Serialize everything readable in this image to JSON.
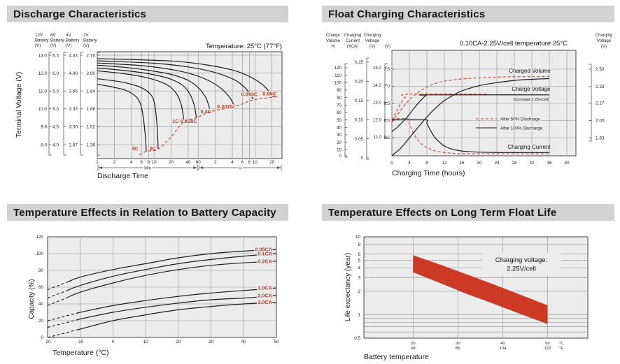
{
  "colors": {
    "title_bar_bg": "#d2d2d2",
    "title_text": "#161616",
    "plot_bg": "#ececec",
    "grid": "#8f8f8f",
    "border": "#444444",
    "curve": "#1c1c1c",
    "accent_red": "#c43a27",
    "band_red": "#cc3a26",
    "tick_text": "#222222"
  },
  "chart_data": [
    {
      "id": "discharge",
      "type": "line",
      "title": "Discharge Characteristics",
      "temperature_note": "Temperature: 25°C (77°F)",
      "xlabel": "Discharge Time",
      "ylabel": "Terminal Voltage (V)",
      "x_sections": [
        {
          "label": "Min"
        },
        {
          "label": "H"
        }
      ],
      "x_ticks_min": [
        "1",
        "2",
        "4",
        "6",
        "8",
        "10",
        "20",
        "40",
        "60"
      ],
      "x_ticks_h": [
        "2",
        "4",
        "6",
        "8",
        "10",
        "20"
      ],
      "y_axes": [
        {
          "title": "12V",
          "subtitle": "Battery",
          "unit": "(V)",
          "ticks": [
            "13.0",
            "12.0",
            "11.0",
            "10.0",
            "9.0",
            "8.0"
          ]
        },
        {
          "title": "6V",
          "subtitle": "Battery",
          "unit": "(V)",
          "ticks": [
            "6.5",
            "6.0",
            "5.5",
            "5.0",
            "4.5",
            "4.0"
          ]
        },
        {
          "title": "4V",
          "subtitle": "Battery",
          "unit": "(V)",
          "ticks": [
            "4.33",
            "4.00",
            "3.66",
            "3.33",
            "3.00",
            "2.67"
          ]
        },
        {
          "title": "2V",
          "subtitle": "Battery",
          "unit": "(V)",
          "ticks": [
            "2.16",
            "2.00",
            "1.84",
            "1.68",
            "1.52",
            "1.36"
          ]
        }
      ],
      "curves": [
        {
          "label": "3C",
          "label_at": [
            4.6,
            1.31
          ],
          "points": [
            [
              1,
              1.9
            ],
            [
              1.5,
              1.885
            ],
            [
              2,
              1.872
            ],
            [
              3,
              1.85
            ],
            [
              4,
              1.82
            ],
            [
              5,
              1.78
            ],
            [
              5.8,
              1.72
            ],
            [
              6.4,
              1.62
            ],
            [
              6.9,
              1.48
            ],
            [
              7.2,
              1.36
            ],
            [
              7.3,
              1.3
            ]
          ]
        },
        {
          "label": "2C",
          "label_at": [
            9.5,
            1.31
          ],
          "points": [
            [
              1,
              1.95
            ],
            [
              2,
              1.93
            ],
            [
              3,
              1.915
            ],
            [
              5,
              1.885
            ],
            [
              7,
              1.85
            ],
            [
              9,
              1.8
            ],
            [
              10.3,
              1.72
            ],
            [
              11.2,
              1.56
            ],
            [
              11.7,
              1.39
            ],
            [
              11.8,
              1.32
            ]
          ]
        },
        {
          "label": "1C",
          "label_at": [
            24,
            1.555
          ],
          "points": [
            [
              1,
              2.02
            ],
            [
              2,
              2.005
            ],
            [
              4,
              1.985
            ],
            [
              8,
              1.955
            ],
            [
              14,
              1.915
            ],
            [
              20,
              1.87
            ],
            [
              26,
              1.8
            ],
            [
              30,
              1.72
            ],
            [
              32.5,
              1.63
            ],
            [
              33.5,
              1.575
            ]
          ]
        },
        {
          "label": "0.628C",
          "label_at": [
            41,
            1.555
          ],
          "points": [
            [
              1,
              2.045
            ],
            [
              2,
              2.032
            ],
            [
              5,
              2.01
            ],
            [
              10,
              1.985
            ],
            [
              20,
              1.945
            ],
            [
              32,
              1.89
            ],
            [
              42,
              1.82
            ],
            [
              50,
              1.73
            ],
            [
              54,
              1.65
            ],
            [
              55.5,
              1.6
            ]
          ]
        },
        {
          "label": "0.4C",
          "label_at": [
            82,
            1.64
          ],
          "points": [
            [
              1,
              2.07
            ],
            [
              3,
              2.052
            ],
            [
              8,
              2.025
            ],
            [
              20,
              1.988
            ],
            [
              40,
              1.935
            ],
            [
              60,
              1.87
            ],
            [
              80,
              1.79
            ],
            [
              92,
              1.71
            ],
            [
              98,
              1.66
            ]
          ]
        },
        {
          "label": "0.207C",
          "label_at": [
            180,
            1.685
          ],
          "points": [
            [
              1,
              2.09
            ],
            [
              5,
              2.07
            ],
            [
              15,
              2.042
            ],
            [
              40,
              2.0
            ],
            [
              90,
              1.935
            ],
            [
              150,
              1.865
            ],
            [
              210,
              1.79
            ],
            [
              250,
              1.725
            ],
            [
              262,
              1.7
            ]
          ]
        },
        {
          "label": "0.093C",
          "label_at": [
            480,
            1.795
          ],
          "points": [
            [
              1,
              2.11
            ],
            [
              10,
              2.088
            ],
            [
              40,
              2.055
            ],
            [
              120,
              2.005
            ],
            [
              260,
              1.94
            ],
            [
              400,
              1.87
            ],
            [
              510,
              1.8
            ],
            [
              560,
              1.765
            ]
          ]
        },
        {
          "label": "0.05C",
          "label_at": [
            1080,
            1.8
          ],
          "points": [
            [
              1,
              2.13
            ],
            [
              20,
              2.108
            ],
            [
              80,
              2.075
            ],
            [
              250,
              2.025
            ],
            [
              500,
              1.965
            ],
            [
              800,
              1.9
            ],
            [
              1050,
              1.84
            ],
            [
              1200,
              1.8
            ],
            [
              1280,
              1.785
            ]
          ]
        }
      ],
      "cutoff_curve": [
        [
          5.5,
          1.27
        ],
        [
          7.3,
          1.3
        ],
        [
          11.8,
          1.32
        ],
        [
          20,
          1.43
        ],
        [
          33.5,
          1.565
        ],
        [
          55.5,
          1.6
        ],
        [
          98,
          1.655
        ],
        [
          262,
          1.7
        ],
        [
          560,
          1.76
        ],
        [
          1280,
          1.785
        ],
        [
          1600,
          1.795
        ]
      ]
    },
    {
      "id": "float_charging",
      "type": "line",
      "title": "Float Charging Characteristics",
      "condition_note": "0.10CA-2.25V/cell  temperature 25°C",
      "xlabel": "Charging Time (hours)",
      "x_ticks": [
        0,
        4,
        8,
        12,
        16,
        20,
        24,
        28,
        32,
        36,
        40
      ],
      "left_axes": [
        {
          "title_lines": [
            "Charge",
            "Volume"
          ],
          "unit": "%",
          "ticks": [
            "120",
            "110",
            "100",
            "90",
            "80",
            "70",
            "60",
            "50",
            "40",
            "30",
            "20",
            "10",
            "0"
          ]
        },
        {
          "title_lines": [
            "Charging",
            "Current"
          ],
          "unit": "(XCA)",
          "ticks": [
            "0.25",
            "0.20",
            "0.15",
            "0.10",
            "0.05",
            "0"
          ]
        },
        {
          "title_lines": [
            "Charging",
            "Voltage"
          ],
          "unit": "(V)",
          "ticks": [
            "15.0",
            "14.0",
            "13.0",
            "12.0",
            "11.0"
          ]
        },
        {
          "title_lines": [],
          "unit": "(V)",
          "ticks": [
            "7.5",
            "7.0",
            "6.5",
            "6.0",
            "5.5"
          ]
        }
      ],
      "right_axis": {
        "title_lines": [
          "Charging",
          "Voltage"
        ],
        "unit": "(V)",
        "ticks": [
          "2.50",
          "2.33",
          "2.17",
          "2.00",
          "1.83"
        ]
      },
      "legend": [
        {
          "label": "After  50% Discharge",
          "style": "dashed-red"
        },
        {
          "label": "After 100% Discharge",
          "style": "solid-black"
        }
      ],
      "series_labels": {
        "volume": "Charged Volume",
        "voltage": "Charge Voltage",
        "voltage_sub": "(Constant 2.25v/cell)",
        "current": "Charging Current"
      },
      "series": {
        "charge_voltage_v": {
          "after_100": [
            [
              0,
              5.68
            ],
            [
              1,
              5.78
            ],
            [
              2,
              5.9
            ],
            [
              3,
              6.03
            ],
            [
              4,
              6.18
            ],
            [
              5,
              6.35
            ],
            [
              6,
              6.5
            ],
            [
              7,
              6.64
            ],
            [
              7.8,
              6.73
            ],
            [
              8.5,
              6.75
            ],
            [
              36,
              6.75
            ]
          ],
          "after_50": [
            [
              0,
              6.02
            ],
            [
              1,
              6.25
            ],
            [
              2,
              6.5
            ],
            [
              3,
              6.68
            ],
            [
              3.8,
              6.77
            ],
            [
              22,
              6.77
            ]
          ]
        },
        "charged_volume_pct": {
          "after_100": [
            [
              0,
              0
            ],
            [
              2,
              12
            ],
            [
              4,
              26
            ],
            [
              6,
              40
            ],
            [
              8,
              54
            ],
            [
              10,
              66
            ],
            [
              12,
              76
            ],
            [
              14,
              83
            ],
            [
              16,
              89
            ],
            [
              20,
              96
            ],
            [
              24,
              100
            ],
            [
              28,
              103
            ],
            [
              32,
              104.5
            ],
            [
              36,
              105.5
            ]
          ],
          "after_50": [
            [
              0,
              47
            ],
            [
              2,
              63
            ],
            [
              4,
              77
            ],
            [
              6,
              87
            ],
            [
              8,
              94
            ],
            [
              10,
              99
            ],
            [
              12,
              102
            ],
            [
              16,
              105
            ],
            [
              20,
              106.5
            ],
            [
              24,
              107.5
            ],
            [
              28,
              108
            ],
            [
              32,
              108
            ],
            [
              36,
              108.5
            ]
          ]
        },
        "charging_current_xca": {
          "after_100": [
            [
              0,
              0.1
            ],
            [
              7.5,
              0.1
            ],
            [
              8,
              0.09
            ],
            [
              9,
              0.068
            ],
            [
              10,
              0.051
            ],
            [
              11,
              0.04
            ],
            [
              12,
              0.031
            ],
            [
              14,
              0.022
            ],
            [
              16,
              0.018
            ],
            [
              18,
              0.016
            ],
            [
              20,
              0.015
            ],
            [
              24,
              0.014
            ],
            [
              30,
              0.014
            ],
            [
              36,
              0.014
            ]
          ],
          "after_50": [
            [
              0,
              0.102
            ],
            [
              3.6,
              0.102
            ],
            [
              4,
              0.088
            ],
            [
              5,
              0.063
            ],
            [
              6,
              0.046
            ],
            [
              7,
              0.034
            ],
            [
              8,
              0.027
            ],
            [
              10,
              0.018
            ],
            [
              12,
              0.014
            ],
            [
              14,
              0.012
            ],
            [
              16,
              0.011
            ],
            [
              20,
              0.011
            ],
            [
              28,
              0.011
            ],
            [
              36,
              0.011
            ]
          ]
        }
      }
    },
    {
      "id": "capacity_temperature",
      "type": "line",
      "title": "Temperature Effects in Relation to Battery Capacity",
      "xlabel": "Temperature (°C)",
      "ylabel": "Capacity (%)",
      "x_ticks": [
        -20,
        -10,
        0,
        10,
        20,
        30,
        40,
        50
      ],
      "y_ticks": [
        0,
        20,
        40,
        60,
        80,
        100,
        120
      ],
      "x": [
        -20,
        -10,
        0,
        10,
        20,
        30,
        40,
        50
      ],
      "series": [
        {
          "label": "0.05CA",
          "dash_until": -14,
          "values": [
            57,
            72,
            81,
            88,
            95,
            100,
            103,
            105
          ]
        },
        {
          "label": "0.1CA",
          "dash_until": -14,
          "values": [
            47,
            62,
            73,
            81,
            88,
            93,
            97,
            100
          ]
        },
        {
          "label": "0.2CA",
          "dash_until": -14,
          "values": [
            38,
            54,
            65,
            74,
            81,
            86,
            89,
            91
          ]
        },
        {
          "label": "1.0CA",
          "dash_until": -10,
          "values": [
            20,
            30,
            38,
            44,
            49,
            53,
            56,
            59
          ]
        },
        {
          "label": "2.0CA",
          "dash_until": -10,
          "values": [
            12,
            22,
            30,
            36,
            41,
            45,
            47,
            50
          ]
        },
        {
          "label": "3.0CA",
          "dash_until": -10,
          "values": [
            0,
            10,
            20,
            27,
            33,
            37,
            40,
            42
          ]
        }
      ]
    },
    {
      "id": "float_life",
      "type": "area",
      "title": "Temperature Effects on Long Term Float Life",
      "xlabel": "Battery temperature",
      "ylabel": "Life expectancy (year)",
      "annotation": [
        "Charging voltage:",
        "2.25V/cell"
      ],
      "x_ticks": [
        {
          "c": "20",
          "f": "68"
        },
        {
          "c": "30",
          "f": "86"
        },
        {
          "c": "40",
          "f": "104"
        },
        {
          "c": "50",
          "f": "122"
        }
      ],
      "x_unit": {
        "c": "°C",
        "f": "°F"
      },
      "y_ticks": [
        "10",
        "8",
        "6",
        "5",
        "4",
        "3",
        "2",
        "1",
        "0.5"
      ],
      "grid_y": [
        0.6,
        0.7,
        0.8,
        0.9,
        1,
        2,
        3,
        4,
        5,
        6,
        8,
        10
      ],
      "band": {
        "x": [
          20,
          26,
          32,
          38,
          44,
          50
        ],
        "upper": [
          5.8,
          4.4,
          3.3,
          2.45,
          1.8,
          1.32
        ],
        "lower": [
          3.5,
          2.55,
          1.85,
          1.38,
          1.02,
          0.76
        ]
      }
    }
  ]
}
